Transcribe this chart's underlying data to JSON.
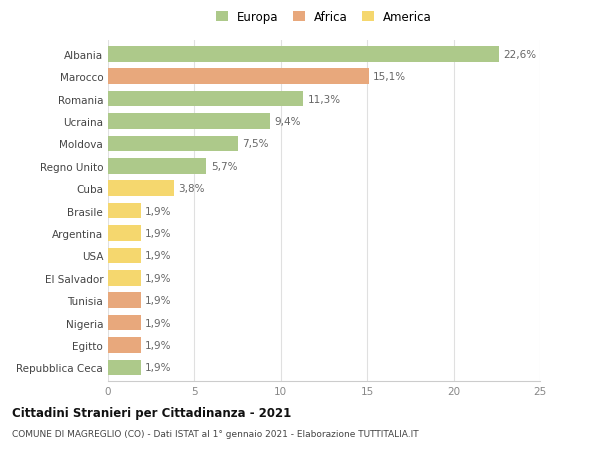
{
  "countries": [
    "Albania",
    "Marocco",
    "Romania",
    "Ucraina",
    "Moldova",
    "Regno Unito",
    "Cuba",
    "Brasile",
    "Argentina",
    "USA",
    "El Salvador",
    "Tunisia",
    "Nigeria",
    "Egitto",
    "Repubblica Ceca"
  ],
  "values": [
    22.6,
    15.1,
    11.3,
    9.4,
    7.5,
    5.7,
    3.8,
    1.9,
    1.9,
    1.9,
    1.9,
    1.9,
    1.9,
    1.9,
    1.9
  ],
  "labels": [
    "22,6%",
    "15,1%",
    "11,3%",
    "9,4%",
    "7,5%",
    "5,7%",
    "3,8%",
    "1,9%",
    "1,9%",
    "1,9%",
    "1,9%",
    "1,9%",
    "1,9%",
    "1,9%",
    "1,9%"
  ],
  "continents": [
    "Europa",
    "Africa",
    "Europa",
    "Europa",
    "Europa",
    "Europa",
    "America",
    "America",
    "America",
    "America",
    "America",
    "Africa",
    "Africa",
    "Africa",
    "Europa"
  ],
  "colors": {
    "Europa": "#adc98a",
    "Africa": "#e8a87c",
    "America": "#f5d76e"
  },
  "legend": [
    "Europa",
    "Africa",
    "America"
  ],
  "legend_colors": [
    "#adc98a",
    "#e8a87c",
    "#f5d76e"
  ],
  "title_main": "Cittadini Stranieri per Cittadinanza - 2021",
  "title_sub": "COMUNE DI MAGREGLIO (CO) - Dati ISTAT al 1° gennaio 2021 - Elaborazione TUTTITALIA.IT",
  "xlim": [
    0,
    25
  ],
  "xticks": [
    0,
    5,
    10,
    15,
    20,
    25
  ],
  "background_color": "#ffffff",
  "grid_color": "#e0e0e0",
  "bar_height": 0.7
}
